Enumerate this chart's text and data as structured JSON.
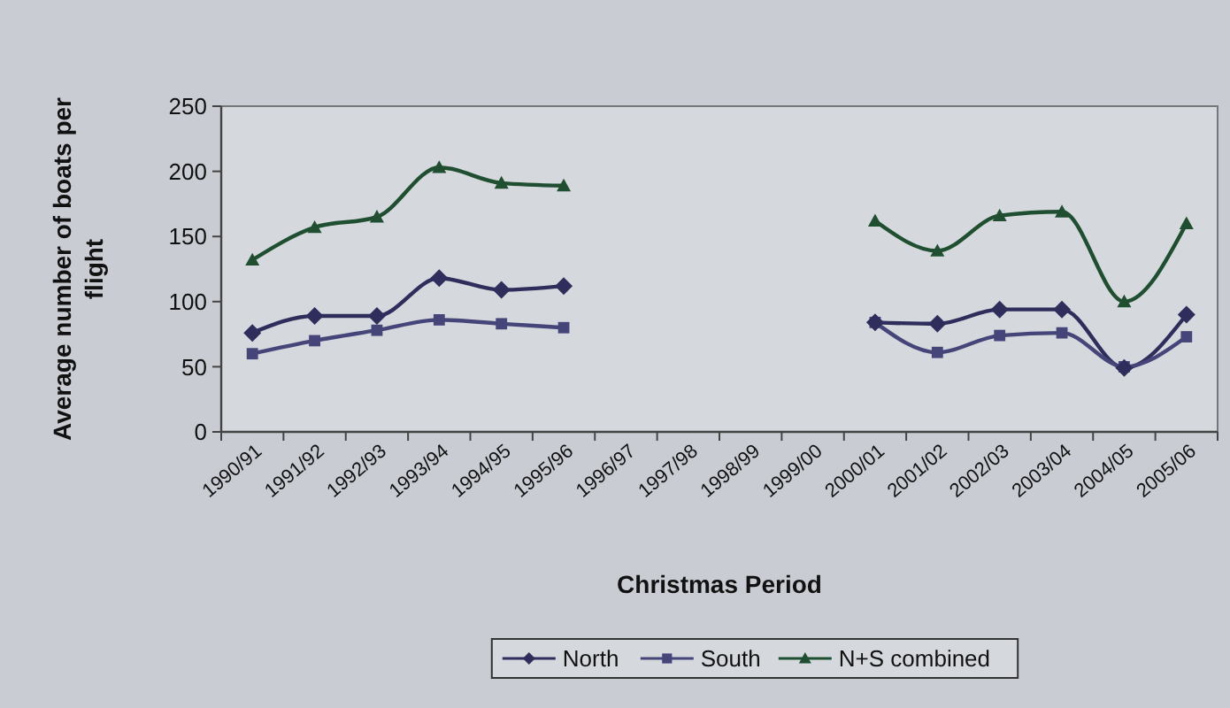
{
  "chart_data": {
    "type": "line",
    "xlabel": "Christmas Period",
    "ylabel": "Average number of boats per flight",
    "categories": [
      "1990/91",
      "1991/92",
      "1992/93",
      "1993/94",
      "1994/95",
      "1995/96",
      "1996/97",
      "1997/98",
      "1998/99",
      "1999/00",
      "2000/01",
      "2001/02",
      "2002/03",
      "2003/04",
      "2004/05",
      "2005/06"
    ],
    "series": [
      {
        "name": "North",
        "color": "#2e2d5c",
        "marker": "diamond",
        "values": [
          76,
          89,
          89,
          118,
          109,
          112,
          null,
          null,
          null,
          null,
          84,
          83,
          94,
          94,
          49,
          90
        ]
      },
      {
        "name": "South",
        "color": "#45457a",
        "marker": "square",
        "values": [
          60,
          70,
          78,
          86,
          83,
          80,
          null,
          null,
          null,
          null,
          84,
          61,
          74,
          76,
          50,
          73
        ]
      },
      {
        "name": "N+S combined",
        "color": "#1f4f30",
        "marker": "triangle",
        "values": [
          132,
          157,
          165,
          203,
          191,
          189,
          null,
          null,
          null,
          null,
          162,
          139,
          166,
          169,
          100,
          160
        ]
      }
    ],
    "ylim": [
      0,
      250
    ],
    "yticks": [
      0,
      50,
      100,
      150,
      200,
      250
    ],
    "grid": false,
    "legend": "bottom"
  }
}
